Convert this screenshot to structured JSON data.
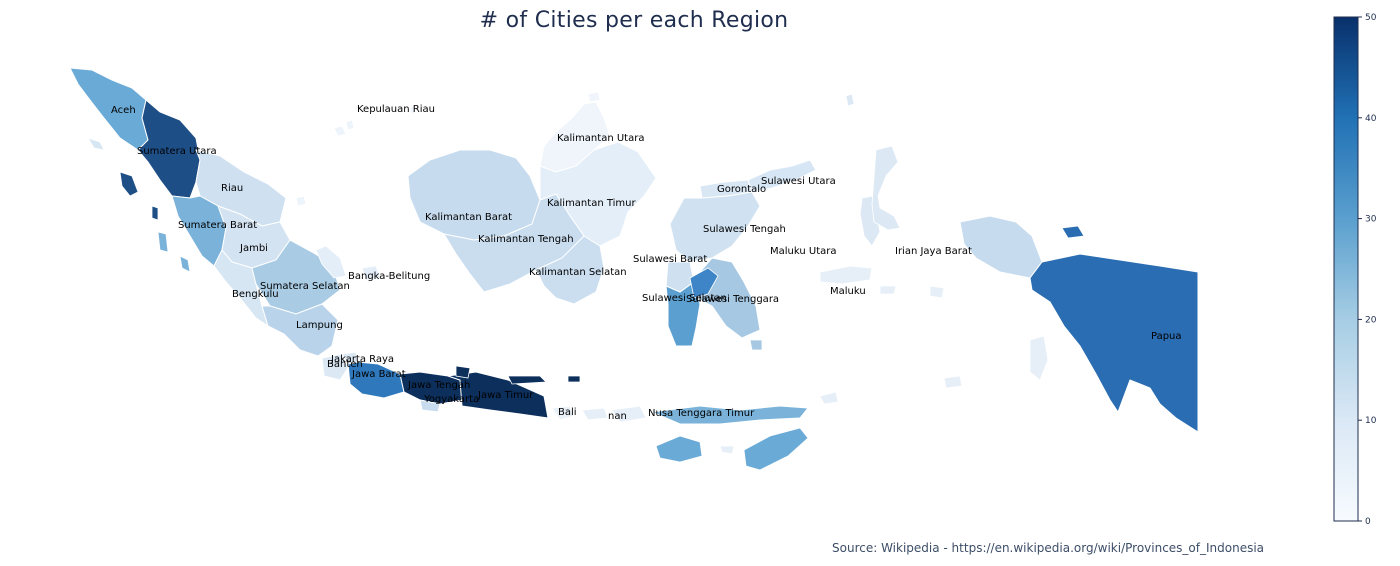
{
  "title": "# of Cities per each Region",
  "source": "Source: Wikipedia - https://en.wikipedia.org/wiki/Provinces_of_Indonesia",
  "colorbar": {
    "min": 0,
    "max": 50,
    "ticks": [
      "0",
      "10",
      "20",
      "30",
      "40",
      "50"
    ],
    "color_low": "#f7fbff",
    "color_high": "#08306b"
  },
  "regions": {
    "aceh": "Aceh",
    "sumatera_utara": "Sumatera Utara",
    "riau": "Riau",
    "kepulauan_riau": "Kepulauan Riau",
    "sumatera_barat": "Sumatera Barat",
    "jambi": "Jambi",
    "bengkulu": "Bengkulu",
    "sumatera_selatan": "Sumatera Selatan",
    "bangka_belitung": "Bangka-Belitung",
    "lampung": "Lampung",
    "jakarta_raya": "Jakarta Raya",
    "banten": "Banten",
    "jawa_barat": "Jawa Barat",
    "jawa_tengah": "Jawa Tengah",
    "yogyakarta": "Yogyakarta",
    "jawa_timur": "Jawa Timur",
    "bali": "Bali",
    "nusa_tenggara_barat": "nan",
    "nusa_tenggara_timur": "Nusa Tenggara Timur",
    "kalimantan_utara": "Kalimantan Utara",
    "kalimantan_barat": "Kalimantan Barat",
    "kalimantan_timur": "Kalimantan Timur",
    "kalimantan_tengah": "Kalimantan Tengah",
    "kalimantan_selatan": "Kalimantan Selatan",
    "gorontalo": "Gorontalo",
    "sulawesi_utara": "Sulawesi Utara",
    "sulawesi_tengah": "Sulawesi Tengah",
    "sulawesi_barat": "Sulawesi Barat",
    "sulawesi_selatan": "Sulawesi Selatan",
    "sulawesi_tenggara": "Sulawesi Tenggara",
    "maluku_utara": "Maluku Utara",
    "maluku": "Maluku",
    "irian_jaya_barat": "Irian Jaya Barat",
    "papua": "Papua"
  }
}
